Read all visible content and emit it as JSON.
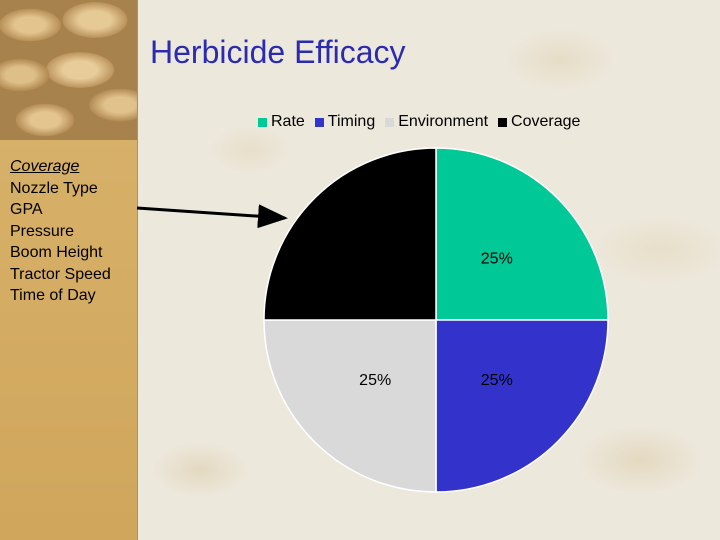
{
  "slide": {
    "title": "Herbicide Efficacy",
    "sidebar_list": {
      "heading": "Coverage",
      "items": [
        "Nozzle Type",
        "GPA",
        "Pressure",
        "Boom Height",
        "Tractor Speed",
        "Time of Day"
      ]
    }
  },
  "chart_data": {
    "type": "pie",
    "title": "",
    "labels": [
      "Rate",
      "Timing",
      "Environment",
      "Coverage"
    ],
    "values": [
      25,
      25,
      25,
      25
    ],
    "value_labels": [
      "25%",
      "25%",
      "25%",
      "25%"
    ],
    "colors": [
      "#00c896",
      "#3333cc",
      "#d9d9d9",
      "#000000"
    ],
    "legend": "top",
    "start_angle_deg": 0,
    "direction": "clockwise"
  }
}
